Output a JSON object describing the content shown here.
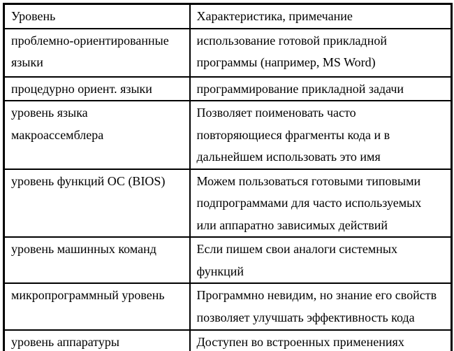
{
  "colors": {
    "background": "#ffffff",
    "border": "#000000",
    "text": "#000000"
  },
  "table": {
    "headers": {
      "level": "Уровень",
      "note": "Характеристика, примечание"
    },
    "rows": [
      {
        "level": "проблемно-ориентированные\nязыки",
        "note": "использование готовой прикладной\nпрограммы (например, MS Word)"
      },
      {
        "level": "процедурно ориент. языки",
        "note": "программирование прикладной задачи"
      },
      {
        "level": "уровень языка\nмакроассемблера",
        "note": "Позволяет поименовать часто\nповторяющиеся фрагменты кода и в\nдальнейшем использовать это имя"
      },
      {
        "level": "уровень функций ОС (BIOS)",
        "note": "Можем пользоваться готовыми типовыми\nподпрограммами для часто используемых\nили аппаратно зависимых действий"
      },
      {
        "level": "уровень машинных команд",
        "note": "Если пишем свои аналоги системных\nфункций"
      },
      {
        "level": "микропрограммный уровень",
        "note": "Программно невидим, но знание его свойств\nпозволяет улучшать эффективность кода"
      },
      {
        "level": "уровень аппаратуры",
        "note": "Доступен во встроенных применениях"
      }
    ]
  }
}
